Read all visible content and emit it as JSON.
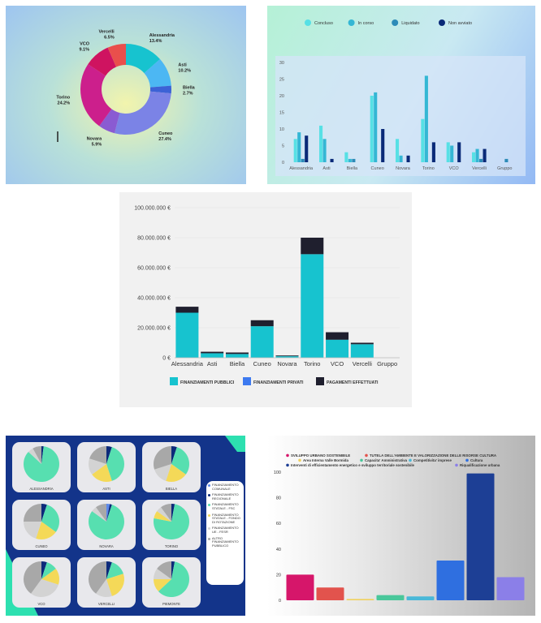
{
  "chart_data": [
    {
      "type": "pie",
      "slices": [
        {
          "label": "Alessandria",
          "pct_label": "13.4%",
          "value": 13.4,
          "color": "#17c3cf"
        },
        {
          "label": "Asti",
          "pct_label": "10.2%",
          "value": 10.2,
          "color": "#4cb7f3"
        },
        {
          "label": "Biella",
          "pct_label": "2.7%",
          "value": 2.7,
          "color": "#3c62d6"
        },
        {
          "label": "Cuneo",
          "pct_label": "27.4%",
          "value": 27.4,
          "color": "#7b83e6"
        },
        {
          "label": "Novara",
          "pct_label": "5.9%",
          "value": 5.9,
          "color": "#8a5bd2"
        },
        {
          "label": "Torino",
          "pct_label": "24.2%",
          "value": 24.2,
          "color": "#cc1f8c"
        },
        {
          "label": "VCO",
          "pct_label": "9.1%",
          "value": 9.1,
          "color": "#cf1360"
        },
        {
          "label": "Vercelli",
          "pct_label": "6.5%",
          "value": 6.5,
          "color": "#e94f4c"
        }
      ]
    },
    {
      "type": "bar",
      "categories": [
        "Alessandria",
        "Asti",
        "Biella",
        "Cuneo",
        "Novara",
        "Torino",
        "VCO",
        "Vercelli",
        "Gruppo"
      ],
      "yticks": [
        "0",
        "5",
        "10",
        "15",
        "20",
        "25",
        "30"
      ],
      "ylim": [
        0,
        30
      ],
      "legend_position": "top",
      "series": [
        {
          "name": "Concluso",
          "color": "#57e0e5",
          "values": [
            7,
            11,
            3,
            20,
            7,
            13,
            6,
            3,
            0
          ]
        },
        {
          "name": "In corso",
          "color": "#34b7d4",
          "values": [
            9,
            7,
            1,
            21,
            2,
            26,
            5,
            4,
            0
          ]
        },
        {
          "name": "Liquidato",
          "color": "#2d8bb8",
          "values": [
            1,
            0,
            1,
            0,
            0,
            0,
            0,
            1,
            1
          ]
        },
        {
          "name": "Non avviato",
          "color": "#0a2a78",
          "values": [
            8,
            1,
            0,
            10,
            2,
            6,
            6,
            4,
            0
          ]
        }
      ]
    },
    {
      "type": "bar",
      "stacked": true,
      "categories": [
        "Alessandria",
        "Asti",
        "Biella",
        "Cuneo",
        "Novara",
        "Torino",
        "VCO",
        "Vercelli",
        "Gruppo"
      ],
      "yticks": [
        "0 €",
        "20.000.000 €",
        "40.000.000 €",
        "60.000.000 €",
        "80.000.000 €",
        "100.000.000 €"
      ],
      "ylim": [
        0,
        100000000
      ],
      "legend_position": "bottom",
      "series": [
        {
          "name": "FINANZIAMENTI PUBBLICI",
          "color": "#17c3cf",
          "values": [
            30000000,
            3000000,
            2500000,
            21000000,
            1000000,
            69000000,
            12000000,
            9000000,
            0
          ]
        },
        {
          "name": "FINANZIAMENTI PRIVATI",
          "color": "#3d7af0",
          "values": [
            0,
            0,
            0,
            0,
            0,
            0,
            0,
            0,
            0
          ]
        },
        {
          "name": "PAGAMENTI EFFETTUATI",
          "color": "#1f1f2e",
          "values": [
            4000000,
            1000000,
            1000000,
            4000000,
            500000,
            11000000,
            5000000,
            1000000,
            0
          ]
        }
      ]
    },
    {
      "type": "pie",
      "legend": [
        {
          "label": "FINANZIAMENTO COMUNALE",
          "color": "#5b88ea"
        },
        {
          "label": "FINANZIAMENTO REGIONALE",
          "color": "#0c2a7a"
        },
        {
          "label": "FINANZIAMENTO STATALE - FSC",
          "color": "#57dfb0"
        },
        {
          "label": "FINANZIAMENTO STATALE - FONDO DI ROTAZIONE",
          "color": "#f4d958"
        },
        {
          "label": "FINANZIAMENTO UE - FESR",
          "color": "#d3d3d3"
        },
        {
          "label": "ALTRO FINANZIAMENTO PUBBLICO",
          "color": "#a8a8a8"
        }
      ],
      "pies": [
        {
          "label": "ALESSANDRIA",
          "values": [
            0,
            2,
            85,
            0,
            5,
            8
          ]
        },
        {
          "label": "ASTI",
          "values": [
            0,
            5,
            40,
            20,
            15,
            20
          ]
        },
        {
          "label": "BIELLA",
          "values": [
            0,
            5,
            30,
            20,
            15,
            30
          ]
        },
        {
          "label": "CUNEO",
          "values": [
            0,
            5,
            30,
            20,
            20,
            25
          ]
        },
        {
          "label": "NOVARA",
          "values": [
            3,
            2,
            80,
            0,
            5,
            10
          ]
        },
        {
          "label": "TORINO",
          "values": [
            0,
            3,
            75,
            7,
            5,
            10
          ]
        },
        {
          "label": "VCO",
          "values": [
            0,
            5,
            10,
            15,
            30,
            40
          ]
        },
        {
          "label": "VERCELLI",
          "values": [
            0,
            5,
            15,
            25,
            15,
            40
          ]
        },
        {
          "label": "PIEMONTE",
          "values": [
            0,
            3,
            60,
            12,
            10,
            15
          ]
        }
      ]
    },
    {
      "type": "bar",
      "categories": [
        "SVILUPPO URBANO SOSTENIBILE",
        "TUTELA DELL'AMBIENTE E VALORIZZAZIONE DELLE RISORSE CULTURA",
        "Area Interna Valle Bormida",
        "Capacita' Amministrativa",
        "Competitivita' imprese",
        "Cultura",
        "Interventi di efficientamento energetico e sviluppo territoriale sostenibile",
        "Riqualificazione urbana"
      ],
      "values": [
        20,
        10,
        1,
        4,
        3,
        31,
        99,
        18
      ],
      "colors": [
        "#d6166a",
        "#e2534d",
        "#f0d15e",
        "#49c79a",
        "#49b8d8",
        "#2f6fe0",
        "#1d3f95",
        "#8b7fe8"
      ],
      "yticks": [
        "0",
        "20",
        "40",
        "60",
        "80",
        "100"
      ],
      "ylim": [
        0,
        100
      ],
      "legend_position": "top"
    }
  ]
}
